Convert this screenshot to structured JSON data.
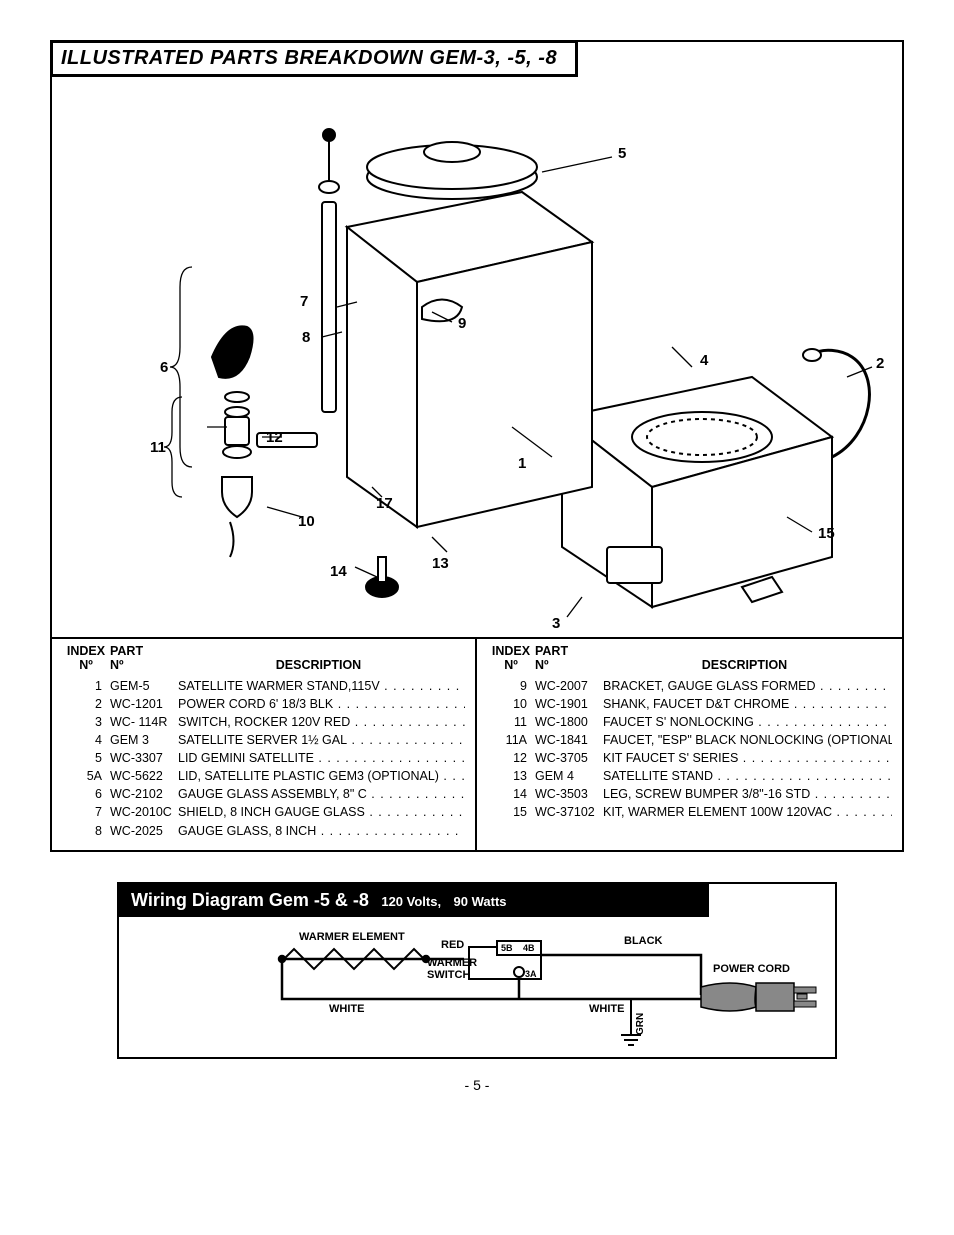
{
  "title": "ILLUSTRATED PARTS BREAKDOWN GEM-3, -5, -8",
  "page_number": "- 5 -",
  "diagram_callouts": [
    "1",
    "2",
    "3",
    "4",
    "5",
    "6",
    "7",
    "8",
    "9",
    "10",
    "11",
    "12",
    "13",
    "14",
    "15",
    "17"
  ],
  "parts_table": {
    "headers": {
      "index": "INDEX",
      "index_sub": "Nº",
      "part": "PART",
      "part_sub": "Nº",
      "description": "DESCRIPTION"
    },
    "left": [
      {
        "idx": "1",
        "part": "GEM-5",
        "desc": "SATELLITE WARMER STAND,115V"
      },
      {
        "idx": "2",
        "part": "WC-1201",
        "desc": "POWER CORD 6' 18/3 BLK"
      },
      {
        "idx": "3",
        "part": "WC- 114R",
        "desc": "SWITCH, ROCKER 120V RED"
      },
      {
        "idx": "4",
        "part": "GEM 3",
        "desc": "SATELLITE SERVER 1½ GAL"
      },
      {
        "idx": "5",
        "part": "WC-3307",
        "desc": "LID GEMINI SATELLITE"
      },
      {
        "idx": "5A",
        "part": "WC-5622",
        "desc": "LID, SATELLITE PLASTIC GEM3 (OPTIONAL)"
      },
      {
        "idx": "6",
        "part": "WC-2102",
        "desc": "GAUGE GLASS ASSEMBLY, 8\" C"
      },
      {
        "idx": "7",
        "part": "WC-2010C",
        "desc": "SHIELD, 8 INCH GAUGE GLASS"
      },
      {
        "idx": "8",
        "part": "WC-2025",
        "desc": "GAUGE GLASS, 8 INCH"
      }
    ],
    "right": [
      {
        "idx": "9",
        "part": "WC-2007",
        "desc": "BRACKET, GAUGE GLASS FORMED"
      },
      {
        "idx": "10",
        "part": "WC-1901",
        "desc": "SHANK, FAUCET D&T CHROME"
      },
      {
        "idx": "11",
        "part": "WC-1800",
        "desc": "FAUCET S' NONLOCKING"
      },
      {
        "idx": "11A",
        "part": "WC-1841",
        "desc": "FAUCET, \"ESP\" BLACK NONLOCKING (OPTIONAL)"
      },
      {
        "idx": "12",
        "part": "WC-3705",
        "desc": "KIT FAUCET S' SERIES"
      },
      {
        "idx": "13",
        "part": "GEM 4",
        "desc": "SATELLITE STAND"
      },
      {
        "idx": "14",
        "part": "WC-3503",
        "desc": "LEG, SCREW BUMPER 3/8\"-16 STD"
      },
      {
        "idx": "15",
        "part": "WC-37102",
        "desc": "KIT, WARMER ELEMENT 100W 120VAC"
      }
    ]
  },
  "wiring": {
    "title_main": "Wiring Diagram Gem -5 & -8",
    "title_sub1": "120 Volts,",
    "title_sub2": "90 Watts",
    "labels": {
      "warmer_element": "WARMER ELEMENT",
      "red": "RED",
      "black": "BLACK",
      "white_left": "WHITE",
      "white_right": "WHITE",
      "warmer_switch": "WARMER\nSWITCH",
      "sw_5b": "5B",
      "sw_4b": "4B",
      "sw_3a": "3A",
      "power_cord": "POWER CORD",
      "grn": "GRN"
    },
    "colors": {
      "plug_fill": "#888888"
    }
  }
}
